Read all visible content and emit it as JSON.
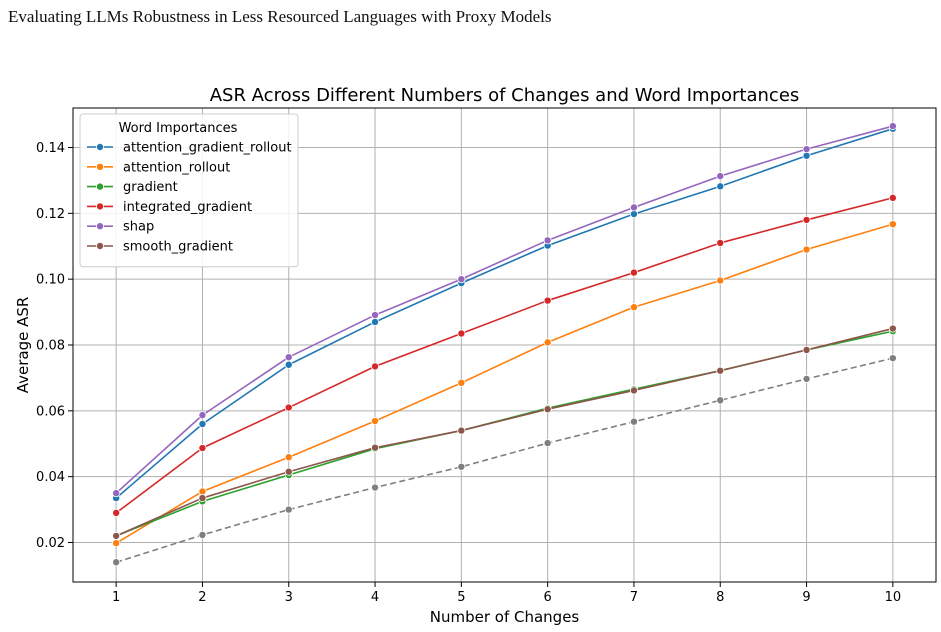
{
  "page": {
    "header": "Evaluating LLMs Robustness in Less Resourced Languages with Proxy Models"
  },
  "chart_data": {
    "type": "line",
    "title": "ASR Across Different Numbers of Changes and Word Importances",
    "xlabel": "Number of Changes",
    "ylabel": "Average ASR",
    "x": [
      1,
      2,
      3,
      4,
      5,
      6,
      7,
      8,
      9,
      10
    ],
    "xlim": [
      0.5,
      10.5
    ],
    "ylim": [
      0.008,
      0.152
    ],
    "yticks": [
      0.02,
      0.04,
      0.06,
      0.08,
      0.1,
      0.12,
      0.14
    ],
    "ytick_labels": [
      "0.02",
      "0.04",
      "0.06",
      "0.08",
      "0.10",
      "0.12",
      "0.14"
    ],
    "grid": true,
    "legend": {
      "title": "Word Importances",
      "placement": "top-left"
    },
    "series": [
      {
        "name": "attention_gradient_rollout",
        "color": "#1f77b4",
        "style": "solid",
        "marker": true,
        "values": [
          0.0335,
          0.056,
          0.074,
          0.087,
          0.0988,
          0.1102,
          0.1198,
          0.1282,
          0.1375,
          0.1457
        ]
      },
      {
        "name": "attention_rollout",
        "color": "#ff7f0e",
        "style": "solid",
        "marker": true,
        "values": [
          0.0198,
          0.0355,
          0.0459,
          0.0569,
          0.0685,
          0.0808,
          0.0915,
          0.0996,
          0.109,
          0.1167
        ]
      },
      {
        "name": "gradient",
        "color": "#2ca02c",
        "style": "solid",
        "marker": true,
        "values": [
          0.022,
          0.0325,
          0.0405,
          0.0485,
          0.054,
          0.0608,
          0.0666,
          0.0722,
          0.0785,
          0.0842
        ]
      },
      {
        "name": "integrated_gradient",
        "color": "#d62728",
        "style": "solid",
        "marker": true,
        "values": [
          0.029,
          0.0487,
          0.061,
          0.0735,
          0.0835,
          0.0935,
          0.102,
          0.111,
          0.118,
          0.1247
        ]
      },
      {
        "name": "shap",
        "color": "#9467bd",
        "style": "solid",
        "marker": true,
        "values": [
          0.035,
          0.0587,
          0.0763,
          0.0891,
          0.1,
          0.1118,
          0.1218,
          0.1313,
          0.1395,
          0.1465
        ]
      },
      {
        "name": "smooth_gradient",
        "color": "#8c564b",
        "style": "solid",
        "marker": true,
        "values": [
          0.022,
          0.0335,
          0.0415,
          0.0488,
          0.054,
          0.0605,
          0.0662,
          0.0722,
          0.0785,
          0.085
        ]
      },
      {
        "color": "#7f7f7f",
        "style": "dashed",
        "marker": true,
        "values": [
          0.014,
          0.0223,
          0.03,
          0.0367,
          0.043,
          0.0502,
          0.0567,
          0.0632,
          0.0697,
          0.076
        ]
      }
    ]
  }
}
